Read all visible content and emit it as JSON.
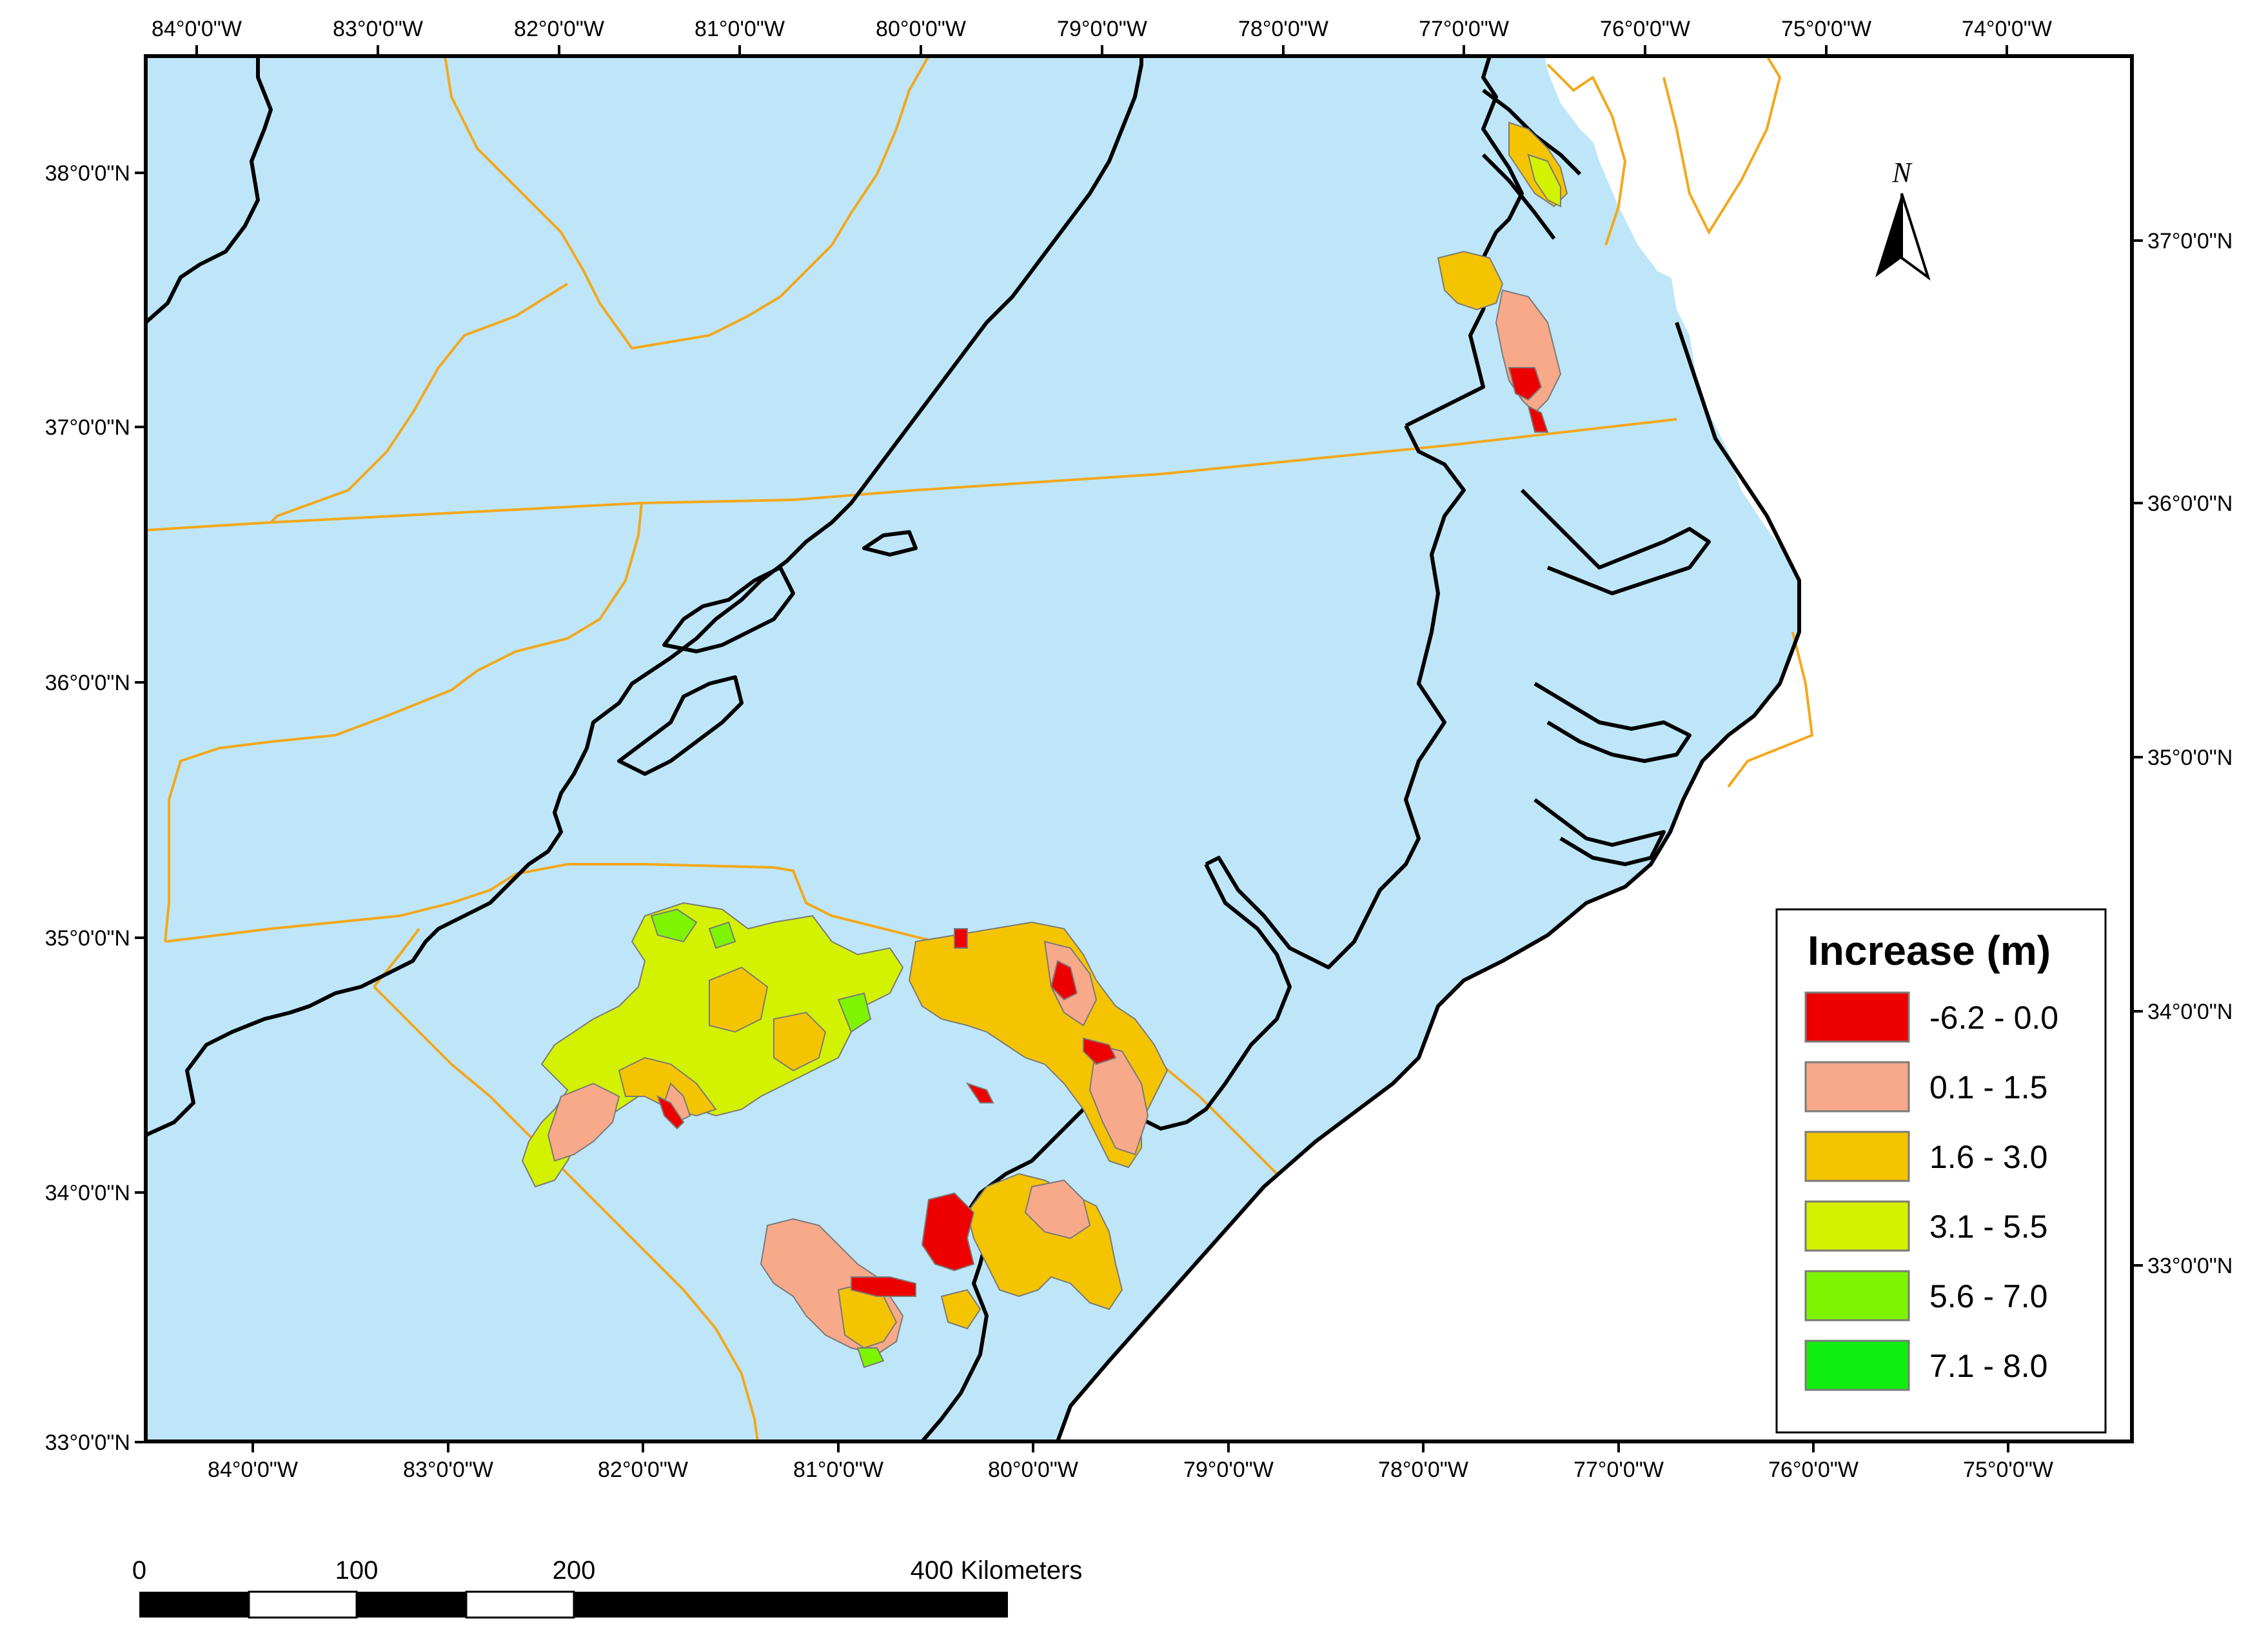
{
  "map": {
    "colors": {
      "water": "#bfe6f8",
      "land": "#ffffff",
      "coastline": "#000000",
      "state_boundary": "#f2a81d",
      "polygon_outline": "#7a7a7a"
    },
    "top_lon_labels": [
      "84°0'0\"W",
      "83°0'0\"W",
      "82°0'0\"W",
      "81°0'0\"W",
      "80°0'0\"W",
      "79°0'0\"W",
      "78°0'0\"W",
      "77°0'0\"W",
      "76°0'0\"W",
      "75°0'0\"W",
      "74°0'0\"W"
    ],
    "bottom_lon_labels": [
      "84°0'0\"W",
      "83°0'0\"W",
      "82°0'0\"W",
      "81°0'0\"W",
      "80°0'0\"W",
      "79°0'0\"W",
      "78°0'0\"W",
      "77°0'0\"W",
      "76°0'0\"W",
      "75°0'0\"W"
    ],
    "left_lat_labels": [
      "38°0'0\"N",
      "37°0'0\"N",
      "36°0'0\"N",
      "35°0'0\"N",
      "34°0'0\"N",
      "33°0'0\"N"
    ],
    "right_lat_labels": [
      "37°0'0\"N",
      "36°0'0\"N",
      "35°0'0\"N",
      "34°0'0\"N",
      "33°0'0\"N"
    ]
  },
  "legend": {
    "title": "Increase (m)",
    "items": [
      {
        "label": "-6.2 - 0.0",
        "color": "#ee0000"
      },
      {
        "label": "0.1 - 1.5",
        "color": "#f7a98a"
      },
      {
        "label": "1.6 - 3.0",
        "color": "#f5c400"
      },
      {
        "label": "3.1 - 5.5",
        "color": "#d3f200"
      },
      {
        "label": "5.6 - 7.0",
        "color": "#7ef500"
      },
      {
        "label": "7.1 - 8.0",
        "color": "#10ee10"
      }
    ]
  },
  "north_arrow": {
    "label": "N",
    "icon": "north-arrow-icon"
  },
  "scale_bar": {
    "labels": [
      "0",
      "100",
      "200",
      "400 Kilometers"
    ]
  }
}
